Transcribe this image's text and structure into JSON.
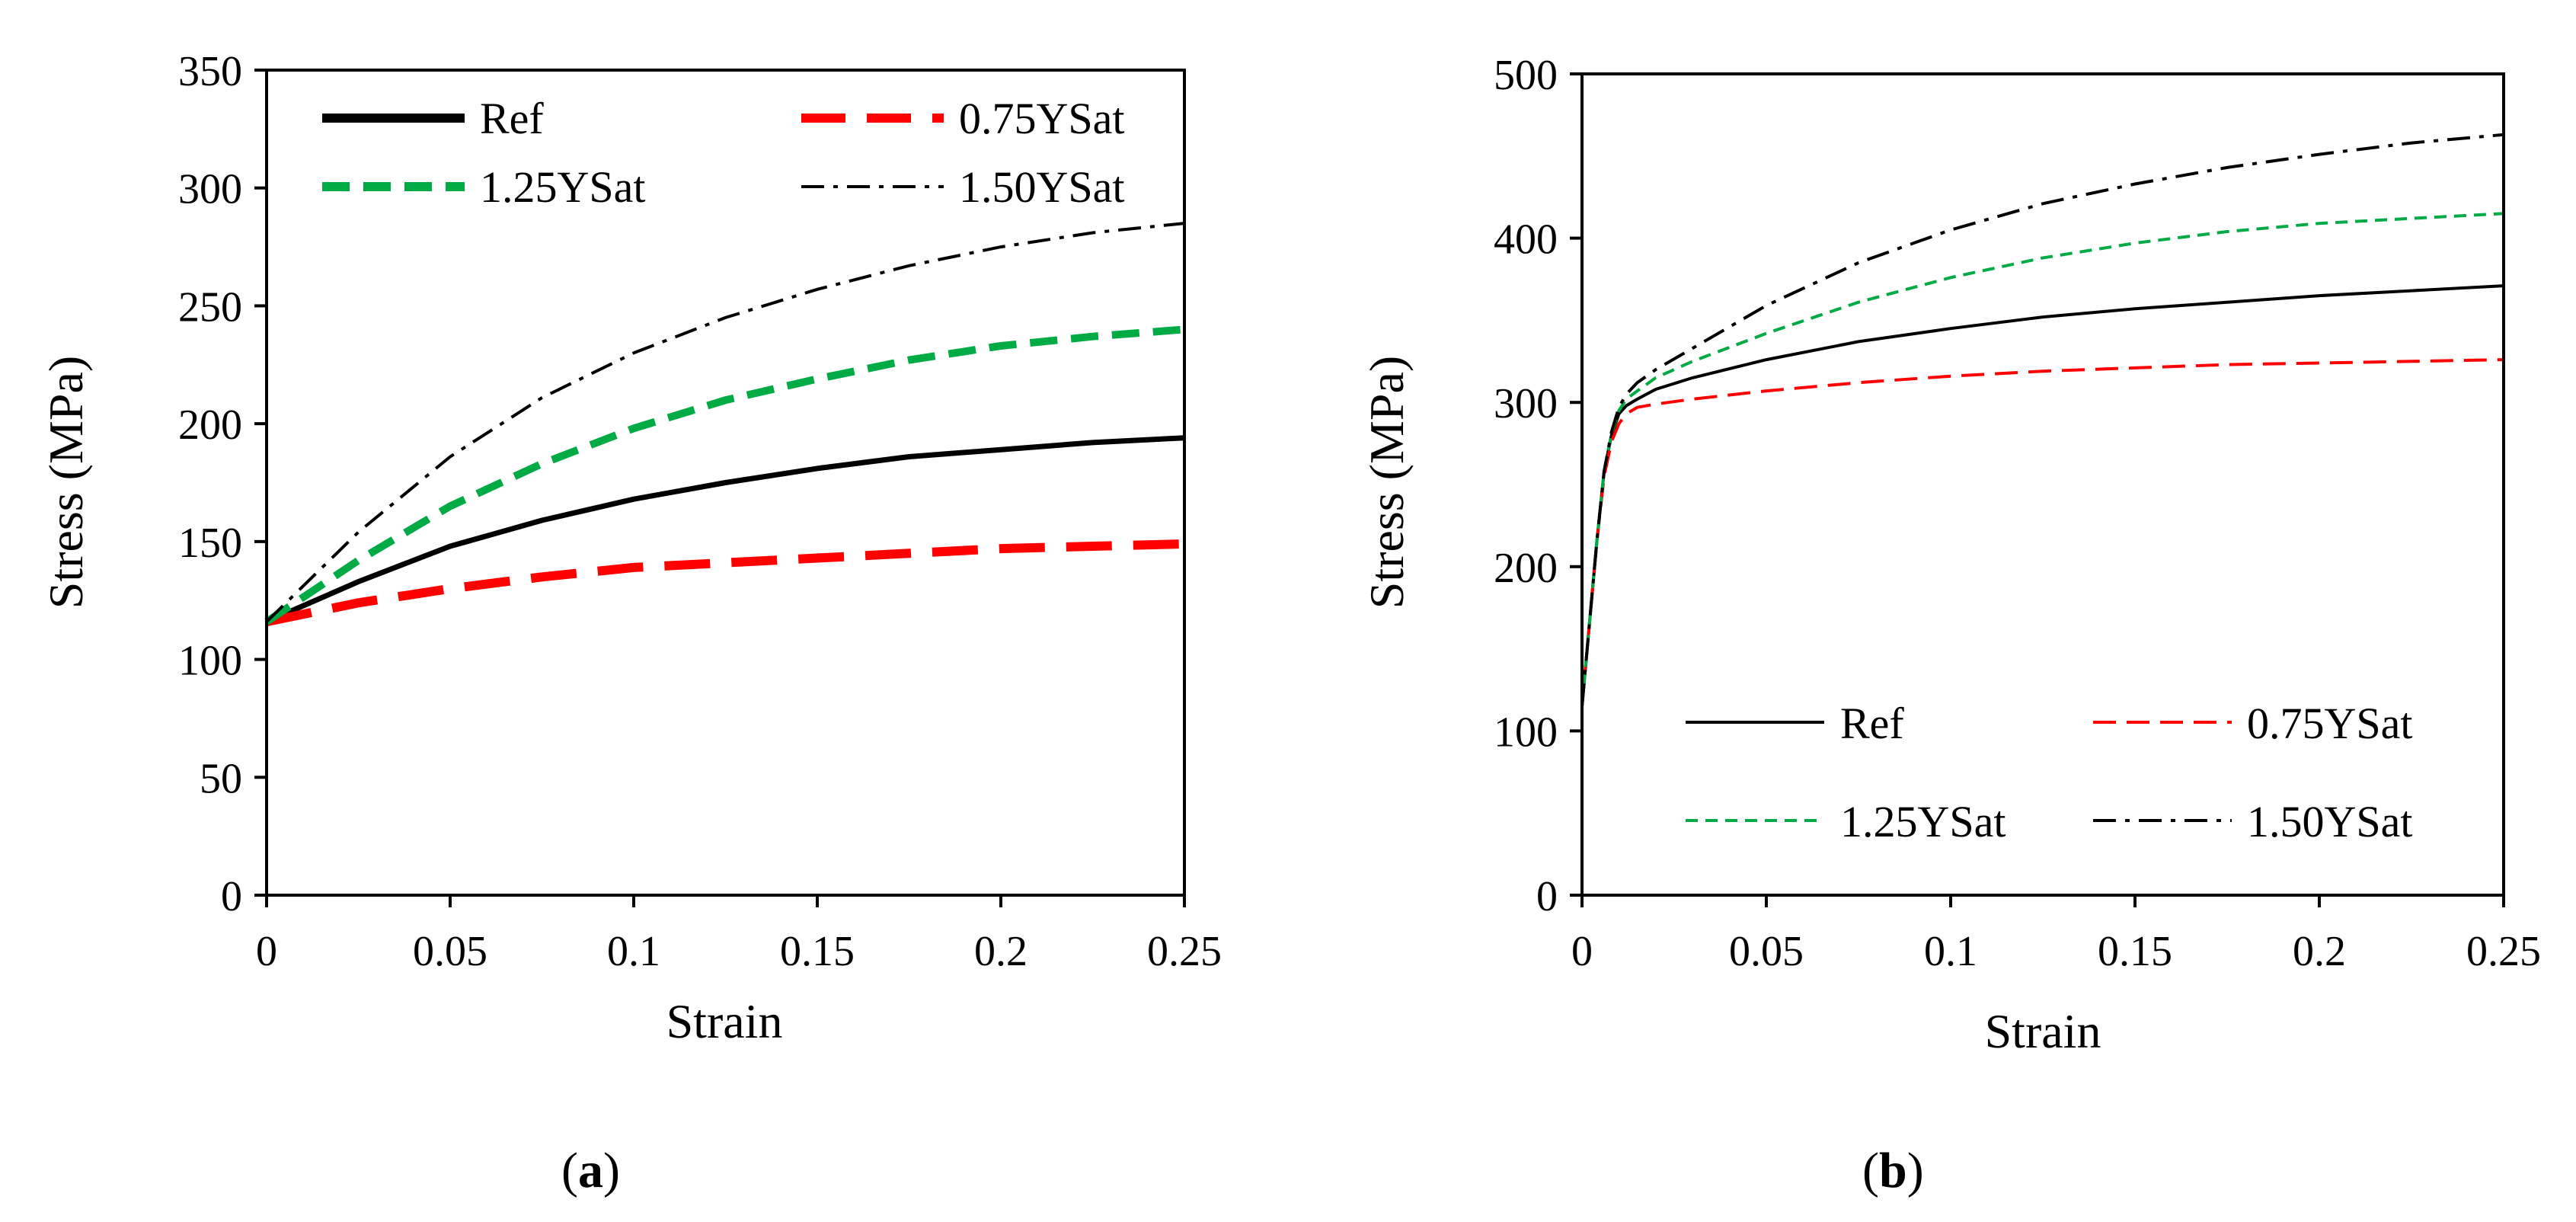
{
  "chart_data": [
    {
      "type": "line",
      "caption": "(a)",
      "caption_letter": "a",
      "xlabel": "Strain",
      "ylabel": "Stress (MPa)",
      "xlim": [
        0,
        0.25
      ],
      "ylim": [
        0,
        350
      ],
      "xticks": [
        "0",
        "0.05",
        "0.1",
        "0.15",
        "0.2",
        "0.25"
      ],
      "yticks": [
        "0",
        "50",
        "100",
        "150",
        "200",
        "250",
        "300",
        "350"
      ],
      "x": [
        0,
        0.025,
        0.05,
        0.075,
        0.1,
        0.125,
        0.15,
        0.175,
        0.2,
        0.225,
        0.25
      ],
      "legend_position": "top",
      "series": [
        {
          "name": "Ref",
          "color": "#000000",
          "style": "solid-thick",
          "values": [
            116,
            133,
            148,
            159,
            168,
            175,
            181,
            186,
            189,
            192,
            194
          ]
        },
        {
          "name": "0.75YSat",
          "color": "#ff0000",
          "style": "long-dash-thick",
          "values": [
            116,
            124,
            130,
            135,
            139,
            141,
            143,
            145,
            147,
            148,
            149
          ]
        },
        {
          "name": "1.25YSat",
          "color": "#00aa44",
          "style": "dash-thick",
          "values": [
            116,
            142,
            165,
            183,
            198,
            210,
            219,
            227,
            233,
            237,
            240
          ]
        },
        {
          "name": "1.50YSat",
          "color": "#000000",
          "style": "dash-dot-thin",
          "values": [
            116,
            154,
            186,
            211,
            230,
            245,
            257,
            267,
            275,
            281,
            285
          ]
        }
      ]
    },
    {
      "type": "line",
      "caption": "(b)",
      "caption_letter": "b",
      "xlabel": "Strain",
      "ylabel": "Stress (MPa)",
      "xlim": [
        0,
        0.25
      ],
      "ylim": [
        0,
        500
      ],
      "xticks": [
        "0",
        "0.05",
        "0.1",
        "0.15",
        "0.2",
        "0.25"
      ],
      "yticks": [
        "0",
        "100",
        "200",
        "300",
        "400",
        "500"
      ],
      "x": [
        0,
        0.002,
        0.004,
        0.006,
        0.008,
        0.01,
        0.012,
        0.015,
        0.02,
        0.03,
        0.05,
        0.075,
        0.1,
        0.125,
        0.15,
        0.175,
        0.2,
        0.225,
        0.25
      ],
      "legend_position": "bottom",
      "series": [
        {
          "name": "Ref",
          "color": "#000000",
          "style": "solid-thin",
          "values": [
            115,
            165,
            215,
            258,
            280,
            293,
            298,
            302,
            308,
            315,
            326,
            337,
            345,
            352,
            357,
            361,
            365,
            368,
            371
          ]
        },
        {
          "name": "0.75YSat",
          "color": "#ff0000",
          "style": "long-dash-thin",
          "values": [
            115,
            165,
            215,
            255,
            276,
            287,
            293,
            297,
            299,
            302,
            307,
            312,
            316,
            319,
            321,
            323,
            324,
            325,
            326
          ]
        },
        {
          "name": "1.25YSat",
          "color": "#00aa44",
          "style": "dash-thin",
          "values": [
            115,
            165,
            215,
            258,
            281,
            295,
            302,
            307,
            315,
            325,
            342,
            361,
            376,
            388,
            397,
            404,
            409,
            412,
            415
          ]
        },
        {
          "name": "1.50YSat",
          "color": "#000000",
          "style": "dash-dot-thin",
          "values": [
            115,
            165,
            215,
            258,
            282,
            297,
            305,
            312,
            320,
            333,
            359,
            385,
            405,
            421,
            433,
            443,
            451,
            458,
            463
          ]
        }
      ]
    }
  ]
}
